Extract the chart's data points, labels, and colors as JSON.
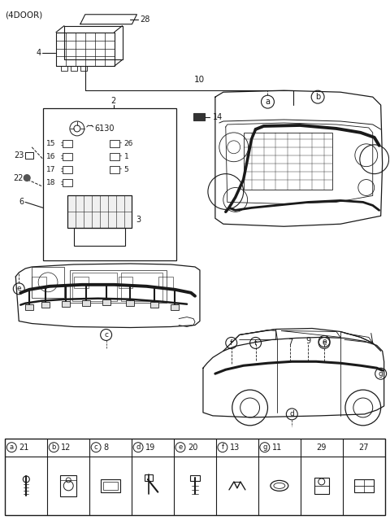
{
  "title": "(4DOOR)",
  "bg": "#ffffff",
  "lc": "#1a1a1a",
  "figsize": [
    4.8,
    6.39
  ],
  "dpi": 100,
  "table_items": [
    {
      "label": "a",
      "num": "21"
    },
    {
      "label": "b",
      "num": "12"
    },
    {
      "label": "c",
      "num": "8"
    },
    {
      "label": "d",
      "num": "19"
    },
    {
      "label": "e",
      "num": "20"
    },
    {
      "label": "f",
      "num": "13"
    },
    {
      "label": "g",
      "num": "11"
    },
    {
      "label": "",
      "num": "29"
    },
    {
      "label": "",
      "num": "27"
    }
  ]
}
